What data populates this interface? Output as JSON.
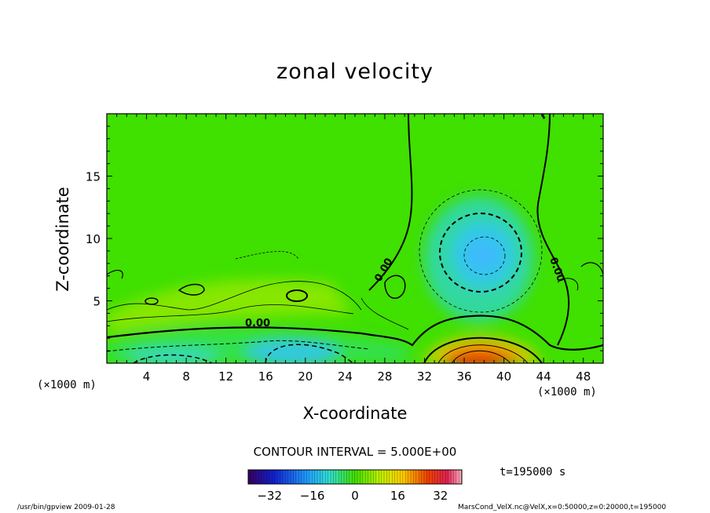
{
  "chart_data": {
    "type": "heatmap",
    "title": "zonal velocity",
    "xlabel": "X-coordinate",
    "ylabel": "Z-coordinate",
    "x_unit": "(×1000 m)",
    "x_unit_right": "(×1000 m)",
    "y_unit": "(×1000 m)",
    "xlim": [
      0,
      50
    ],
    "ylim": [
      0,
      20
    ],
    "x_ticks": [
      4,
      8,
      12,
      16,
      20,
      24,
      28,
      32,
      36,
      40,
      44,
      48
    ],
    "y_ticks": [
      5,
      10,
      15
    ],
    "contour_interval_text": "CONTOUR INTERVAL = 5.000E+00",
    "contour_label": "0.00",
    "time_text": "t=195000 s",
    "colorbar": {
      "min": -40,
      "max": 40,
      "ticks": [
        -32,
        -16,
        0,
        16,
        32
      ]
    },
    "features": [
      {
        "kind": "negative-core",
        "x": 38.5,
        "z": 8.5,
        "value": -15
      },
      {
        "kind": "positive-jet",
        "x": 38,
        "z": 0.5,
        "value": 30
      },
      {
        "kind": "negative-core",
        "x": 19,
        "z": 0.5,
        "value": -10
      },
      {
        "kind": "positive-band",
        "x": 18,
        "z": 5,
        "value": 8
      }
    ]
  },
  "footer": {
    "left": "/usr/bin/gpview  2009-01-28",
    "right": "MarsCond_VelX.nc@VelX,x=0:50000,z=0:20000,t=195000"
  },
  "colors": {
    "background": "#40e000",
    "axes": "#000000"
  }
}
